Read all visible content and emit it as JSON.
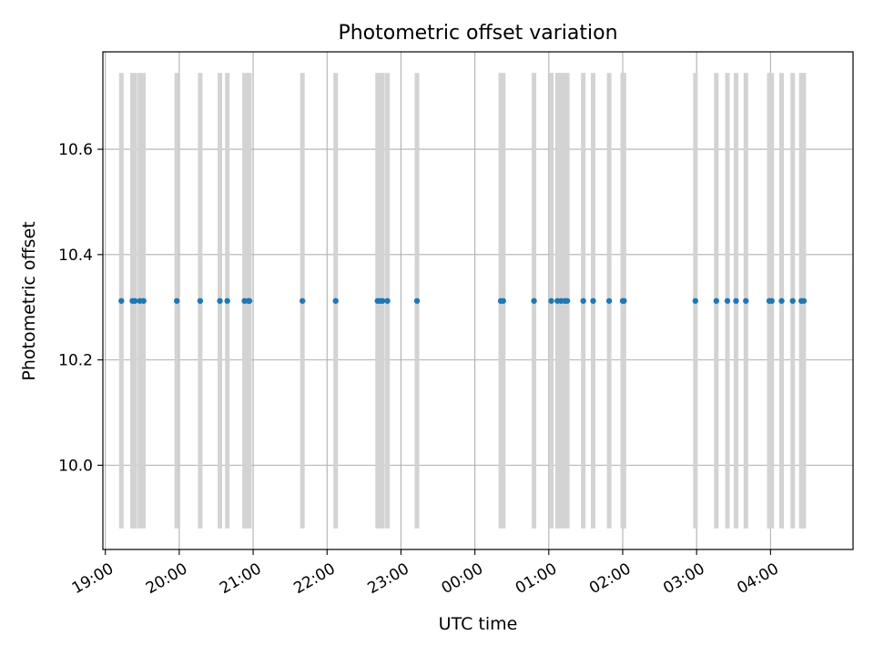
{
  "chart_data": {
    "type": "scatter",
    "title": "Photometric offset variation",
    "xlabel": "UTC time",
    "ylabel": "Photometric offset",
    "x_tick_labels": [
      "19:00",
      "20:00",
      "21:00",
      "22:00",
      "23:00",
      "00:00",
      "01:00",
      "02:00",
      "03:00",
      "04:00"
    ],
    "y_tick_labels": [
      "10.0",
      "10.2",
      "10.4",
      "10.6"
    ],
    "y_ticks": [
      10.0,
      10.2,
      10.4,
      10.6
    ],
    "xlim": [
      "18:58",
      "05:07"
    ],
    "ylim": [
      9.84,
      10.785
    ],
    "grid": true,
    "x_tick_rotation_deg": 30,
    "point_color": "#1f77b4",
    "span_color": "#d3d3d3",
    "span_ymin": 9.88,
    "span_ymax": 10.745,
    "series": [
      {
        "x": [
          "19:13",
          "19:22",
          "19:24",
          "19:28",
          "19:31",
          "19:58",
          "20:17",
          "20:33",
          "20:39",
          "20:53",
          "20:56",
          "20:57",
          "21:40",
          "22:07",
          "22:41",
          "22:43",
          "22:45",
          "22:49",
          "23:13",
          "00:21",
          "00:23",
          "00:48",
          "01:02",
          "01:07",
          "01:10",
          "01:13",
          "01:15",
          "01:28",
          "01:36",
          "01:49",
          "02:00",
          "02:01",
          "02:59",
          "03:16",
          "03:25",
          "03:32",
          "03:40",
          "03:59",
          "04:01",
          "04:09",
          "04:18",
          "04:25",
          "04:27"
        ],
        "y": [
          10.312,
          10.312,
          10.312,
          10.312,
          10.312,
          10.312,
          10.312,
          10.312,
          10.312,
          10.312,
          10.312,
          10.312,
          10.312,
          10.312,
          10.312,
          10.312,
          10.312,
          10.312,
          10.312,
          10.312,
          10.312,
          10.312,
          10.312,
          10.312,
          10.312,
          10.312,
          10.312,
          10.312,
          10.312,
          10.312,
          10.312,
          10.312,
          10.312,
          10.312,
          10.312,
          10.312,
          10.312,
          10.312,
          10.312,
          10.312,
          10.312,
          10.312,
          10.312
        ]
      }
    ]
  }
}
